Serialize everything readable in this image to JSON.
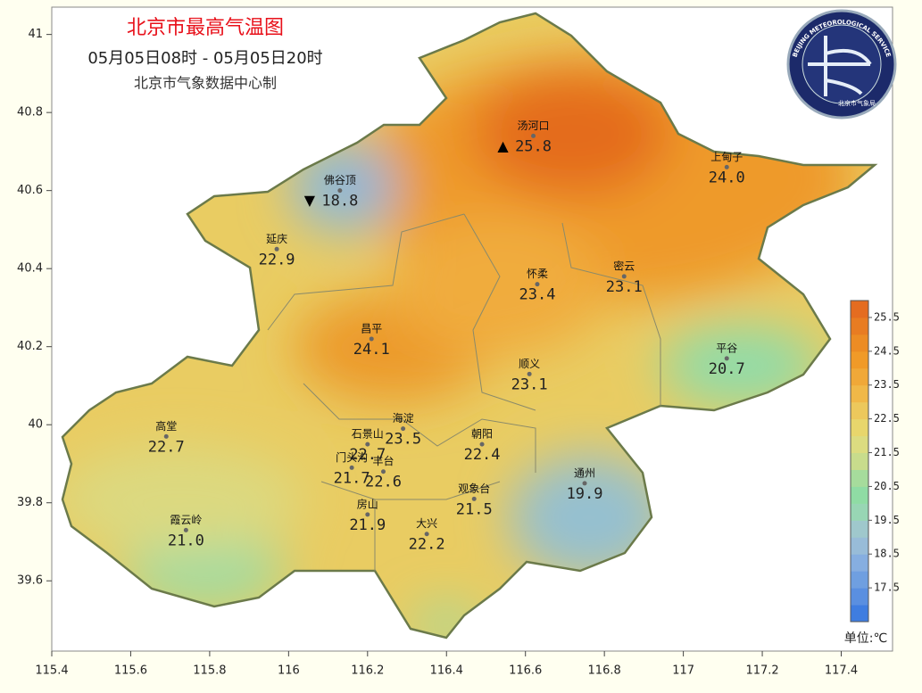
{
  "header": {
    "title": "北京市最高气温图",
    "period": "05月05日08时 - 05月05日20时",
    "source": "北京市气象数据中心制"
  },
  "logo": {
    "ring": "BEIJING METEOROLOGICAL SERVICE",
    "name": "北京市气象局"
  },
  "axes": {
    "xlim": [
      115.4,
      117.53
    ],
    "ylim": [
      39.42,
      41.07
    ],
    "xticks": [
      115.4,
      115.6,
      115.8,
      116,
      116.2,
      116.4,
      116.6,
      116.8,
      117,
      117.2,
      117.4
    ],
    "yticks": [
      39.6,
      39.8,
      40,
      40.2,
      40.4,
      40.6,
      40.8,
      41
    ]
  },
  "stations": [
    {
      "name": "汤河口",
      "value": "25.8",
      "lon": 116.62,
      "lat": 40.74,
      "symbol": "▲"
    },
    {
      "name": "上甸子",
      "value": "24.0",
      "lon": 117.11,
      "lat": 40.66
    },
    {
      "name": "佛谷顶",
      "value": "18.8",
      "lon": 116.13,
      "lat": 40.6,
      "symbol": "▼"
    },
    {
      "name": "延庆",
      "value": "22.9",
      "lon": 115.97,
      "lat": 40.45
    },
    {
      "name": "怀柔",
      "value": "23.4",
      "lon": 116.63,
      "lat": 40.36
    },
    {
      "name": "密云",
      "value": "23.1",
      "lon": 116.85,
      "lat": 40.38
    },
    {
      "name": "昌平",
      "value": "24.1",
      "lon": 116.21,
      "lat": 40.22
    },
    {
      "name": "顺义",
      "value": "23.1",
      "lon": 116.61,
      "lat": 40.13
    },
    {
      "name": "平谷",
      "value": "20.7",
      "lon": 117.11,
      "lat": 40.17
    },
    {
      "name": "海淀",
      "value": "23.5",
      "lon": 116.29,
      "lat": 39.99
    },
    {
      "name": "朝阳",
      "value": "22.4",
      "lon": 116.49,
      "lat": 39.95
    },
    {
      "name": "石景山",
      "value": "22.7",
      "lon": 116.2,
      "lat": 39.95
    },
    {
      "name": "门头沟",
      "value": "21.7",
      "lon": 116.16,
      "lat": 39.89
    },
    {
      "name": "丰台",
      "value": "22.6",
      "lon": 116.24,
      "lat": 39.88
    },
    {
      "name": "高堂",
      "value": "22.7",
      "lon": 115.69,
      "lat": 39.97
    },
    {
      "name": "通州",
      "value": "19.9",
      "lon": 116.75,
      "lat": 39.85
    },
    {
      "name": "观象台",
      "value": "21.5",
      "lon": 116.47,
      "lat": 39.81
    },
    {
      "name": "房山",
      "value": "21.9",
      "lon": 116.2,
      "lat": 39.77
    },
    {
      "name": "霞云岭",
      "value": "21.0",
      "lon": 115.74,
      "lat": 39.73
    },
    {
      "name": "大兴",
      "value": "22.2",
      "lon": 116.35,
      "lat": 39.72
    }
  ],
  "colorbar": {
    "lim": [
      16.5,
      26
    ],
    "ticks": [
      17.5,
      18.5,
      19.5,
      20.5,
      21.5,
      22.5,
      23.5,
      24.5,
      25.5
    ],
    "unit": "单位:℃",
    "colors": [
      "#3f7de0",
      "#5a8fe0",
      "#6f9fe0",
      "#86aee0",
      "#98bcd8",
      "#9fc8cc",
      "#98d6b4",
      "#8fdca4",
      "#a6dc9c",
      "#c8dc8c",
      "#dcdc80",
      "#e8d66c",
      "#ecc85c",
      "#f0b848",
      "#f0a838",
      "#f09a28",
      "#ec8c24",
      "#e87c22",
      "#e46c20"
    ]
  }
}
